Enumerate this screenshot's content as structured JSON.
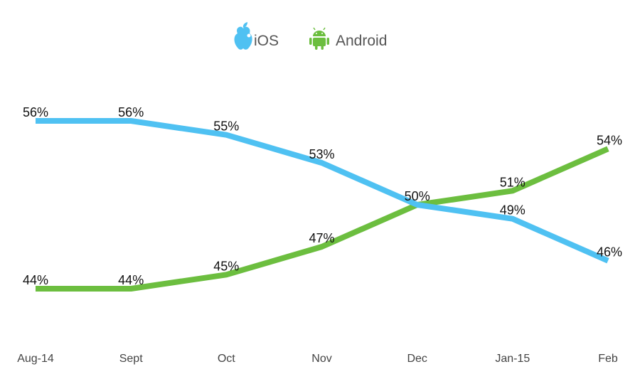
{
  "chart_data": {
    "type": "line",
    "categories": [
      "Aug-14",
      "Sept",
      "Oct",
      "Nov",
      "Dec",
      "Jan-15",
      "Feb"
    ],
    "series": [
      {
        "name": "iOS",
        "values": [
          56,
          56,
          55,
          53,
          50,
          49,
          46
        ],
        "labels": [
          "56%",
          "56%",
          "55%",
          "53%",
          "50%",
          "49%",
          "46%"
        ],
        "color": "#4fc1f2",
        "icon": "apple-icon"
      },
      {
        "name": "Android",
        "values": [
          44,
          44,
          45,
          47,
          50,
          51,
          54
        ],
        "labels": [
          "44%",
          "44%",
          "45%",
          "47%",
          "",
          "51%",
          "54%"
        ],
        "color": "#6cbe3f",
        "icon": "android-icon"
      }
    ],
    "ylim": [
      40,
      60
    ],
    "unit": "%",
    "grid": false,
    "legend": "top-center"
  }
}
